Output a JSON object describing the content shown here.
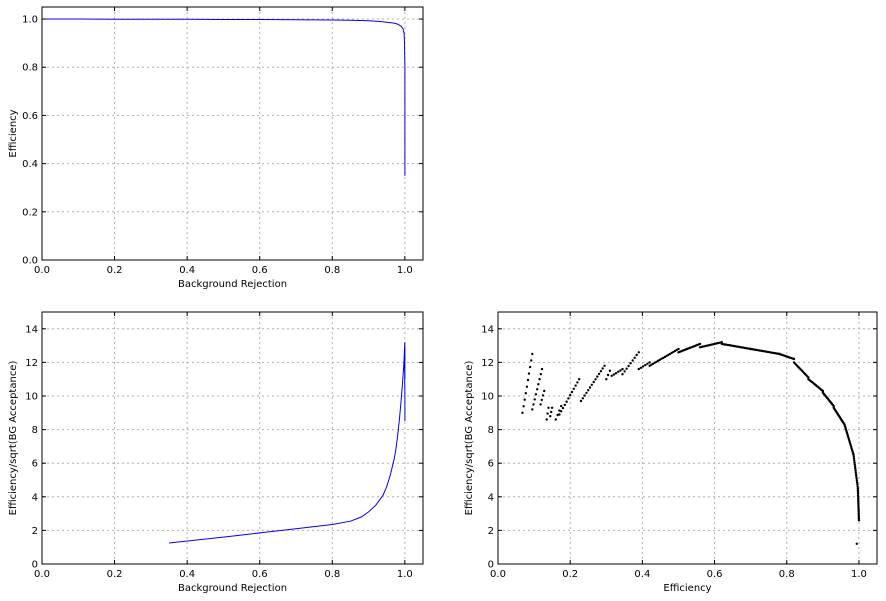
{
  "chart_data": [
    {
      "type": "line",
      "id": "top-left",
      "xlabel": "Background Rejection",
      "ylabel": "Efficiency",
      "xlim": [
        0.0,
        1.05
      ],
      "ylim": [
        0.0,
        1.05
      ],
      "xticks": [
        0.0,
        0.2,
        0.4,
        0.6,
        0.8,
        1.0
      ],
      "yticks": [
        0.0,
        0.2,
        0.4,
        0.6,
        0.8,
        1.0
      ],
      "tick_decimals": 1,
      "grid": true,
      "series": [
        {
          "color": "#0000ff",
          "x": [
            0.0,
            0.1,
            0.2,
            0.3,
            0.4,
            0.5,
            0.6,
            0.7,
            0.8,
            0.85,
            0.9,
            0.93,
            0.95,
            0.97,
            0.98,
            0.99,
            0.995,
            0.998,
            0.999,
            1.0,
            1.0,
            1.0,
            1.0
          ],
          "y": [
            1.0,
            1.0,
            0.999,
            0.999,
            0.999,
            0.998,
            0.998,
            0.997,
            0.996,
            0.995,
            0.993,
            0.99,
            0.987,
            0.983,
            0.979,
            0.97,
            0.96,
            0.94,
            0.9,
            0.8,
            0.6,
            0.45,
            0.35
          ]
        }
      ]
    },
    {
      "type": "line",
      "id": "bottom-left",
      "xlabel": "Background Rejection",
      "ylabel": "Efficiency/sqrt(BG Acceptance)",
      "xlim": [
        0.0,
        1.05
      ],
      "ylim": [
        0,
        15
      ],
      "xticks": [
        0.0,
        0.2,
        0.4,
        0.6,
        0.8,
        1.0
      ],
      "yticks": [
        0,
        2,
        4,
        6,
        8,
        10,
        12,
        14
      ],
      "tick_decimals_x": 1,
      "tick_decimals_y": 0,
      "grid": true,
      "series": [
        {
          "color": "#0000ff",
          "x": [
            0.35,
            0.5,
            0.6,
            0.7,
            0.8,
            0.85,
            0.88,
            0.9,
            0.92,
            0.94,
            0.95,
            0.96,
            0.97,
            0.975,
            0.98,
            0.985,
            0.99,
            0.993,
            0.996,
            0.998,
            0.999,
            1.0,
            1.0,
            1.0,
            0.999,
            1.0,
            1.0,
            1.0
          ],
          "y": [
            1.25,
            1.6,
            1.85,
            2.1,
            2.35,
            2.55,
            2.8,
            3.1,
            3.5,
            4.1,
            4.6,
            5.3,
            6.2,
            6.8,
            7.6,
            8.6,
            9.8,
            10.6,
            11.5,
            12.2,
            12.8,
            13.2,
            12.5,
            11.0,
            12.4,
            10.0,
            9.0,
            8.5
          ]
        }
      ]
    },
    {
      "type": "scatter",
      "id": "bottom-right",
      "xlabel": "Efficiency",
      "ylabel": "Efficiency/sqrt(BG Acceptance)",
      "xlim": [
        0.0,
        1.05
      ],
      "ylim": [
        0,
        15
      ],
      "xticks": [
        0.0,
        0.2,
        0.4,
        0.6,
        0.8,
        1.0
      ],
      "yticks": [
        0,
        2,
        4,
        6,
        8,
        10,
        12,
        14
      ],
      "tick_decimals_x": 1,
      "tick_decimals_y": 0,
      "grid": true,
      "marker_color": "#000000",
      "segments": [
        {
          "x0": 0.068,
          "y0": 9.0,
          "x1": 0.095,
          "y1": 12.5,
          "n": 10
        },
        {
          "x0": 0.095,
          "y0": 9.2,
          "x1": 0.122,
          "y1": 11.6,
          "n": 9
        },
        {
          "x0": 0.118,
          "y0": 9.5,
          "x1": 0.128,
          "y1": 10.3,
          "n": 4
        },
        {
          "x0": 0.135,
          "y0": 8.6,
          "x1": 0.14,
          "y1": 9.3,
          "n": 3
        },
        {
          "x0": 0.145,
          "y0": 8.8,
          "x1": 0.15,
          "y1": 9.3,
          "n": 3
        },
        {
          "x0": 0.16,
          "y0": 8.6,
          "x1": 0.175,
          "y1": 9.4,
          "n": 4
        },
        {
          "x0": 0.17,
          "y0": 8.9,
          "x1": 0.225,
          "y1": 11.0,
          "n": 12
        },
        {
          "x0": 0.23,
          "y0": 9.7,
          "x1": 0.295,
          "y1": 11.8,
          "n": 14
        },
        {
          "x0": 0.3,
          "y0": 11.0,
          "x1": 0.31,
          "y1": 11.5,
          "n": 3
        },
        {
          "x0": 0.315,
          "y0": 11.2,
          "x1": 0.345,
          "y1": 11.6,
          "n": 6
        },
        {
          "x0": 0.345,
          "y0": 11.3,
          "x1": 0.39,
          "y1": 12.6,
          "n": 9
        },
        {
          "x0": 0.39,
          "y0": 11.6,
          "x1": 0.42,
          "y1": 12.0,
          "n": 6
        },
        {
          "x0": 0.42,
          "y0": 11.8,
          "x1": 0.5,
          "y1": 12.8,
          "n": 18
        },
        {
          "x0": 0.5,
          "y0": 12.6,
          "x1": 0.56,
          "y1": 13.1,
          "n": 16
        },
        {
          "x0": 0.56,
          "y0": 12.9,
          "x1": 0.62,
          "y1": 13.2,
          "n": 16
        },
        {
          "x0": 0.62,
          "y0": 13.1,
          "x1": 0.7,
          "y1": 12.8,
          "n": 20
        },
        {
          "x0": 0.7,
          "y0": 12.8,
          "x1": 0.78,
          "y1": 12.5,
          "n": 20
        },
        {
          "x0": 0.78,
          "y0": 12.5,
          "x1": 0.82,
          "y1": 12.2,
          "n": 12
        },
        {
          "x0": 0.82,
          "y0": 12.0,
          "x1": 0.86,
          "y1": 11.1,
          "n": 14
        },
        {
          "x0": 0.86,
          "y0": 11.0,
          "x1": 0.9,
          "y1": 10.3,
          "n": 14
        },
        {
          "x0": 0.9,
          "y0": 10.2,
          "x1": 0.93,
          "y1": 9.4,
          "n": 14
        },
        {
          "x0": 0.93,
          "y0": 9.3,
          "x1": 0.96,
          "y1": 8.3,
          "n": 16
        },
        {
          "x0": 0.96,
          "y0": 8.3,
          "x1": 0.985,
          "y1": 6.5,
          "n": 20
        },
        {
          "x0": 0.985,
          "y0": 6.5,
          "x1": 0.997,
          "y1": 4.5,
          "n": 18
        },
        {
          "x0": 0.997,
          "y0": 4.5,
          "x1": 1.0,
          "y1": 2.6,
          "n": 20
        }
      ],
      "points": [
        {
          "x": 0.994,
          "y": 1.2
        }
      ]
    }
  ]
}
